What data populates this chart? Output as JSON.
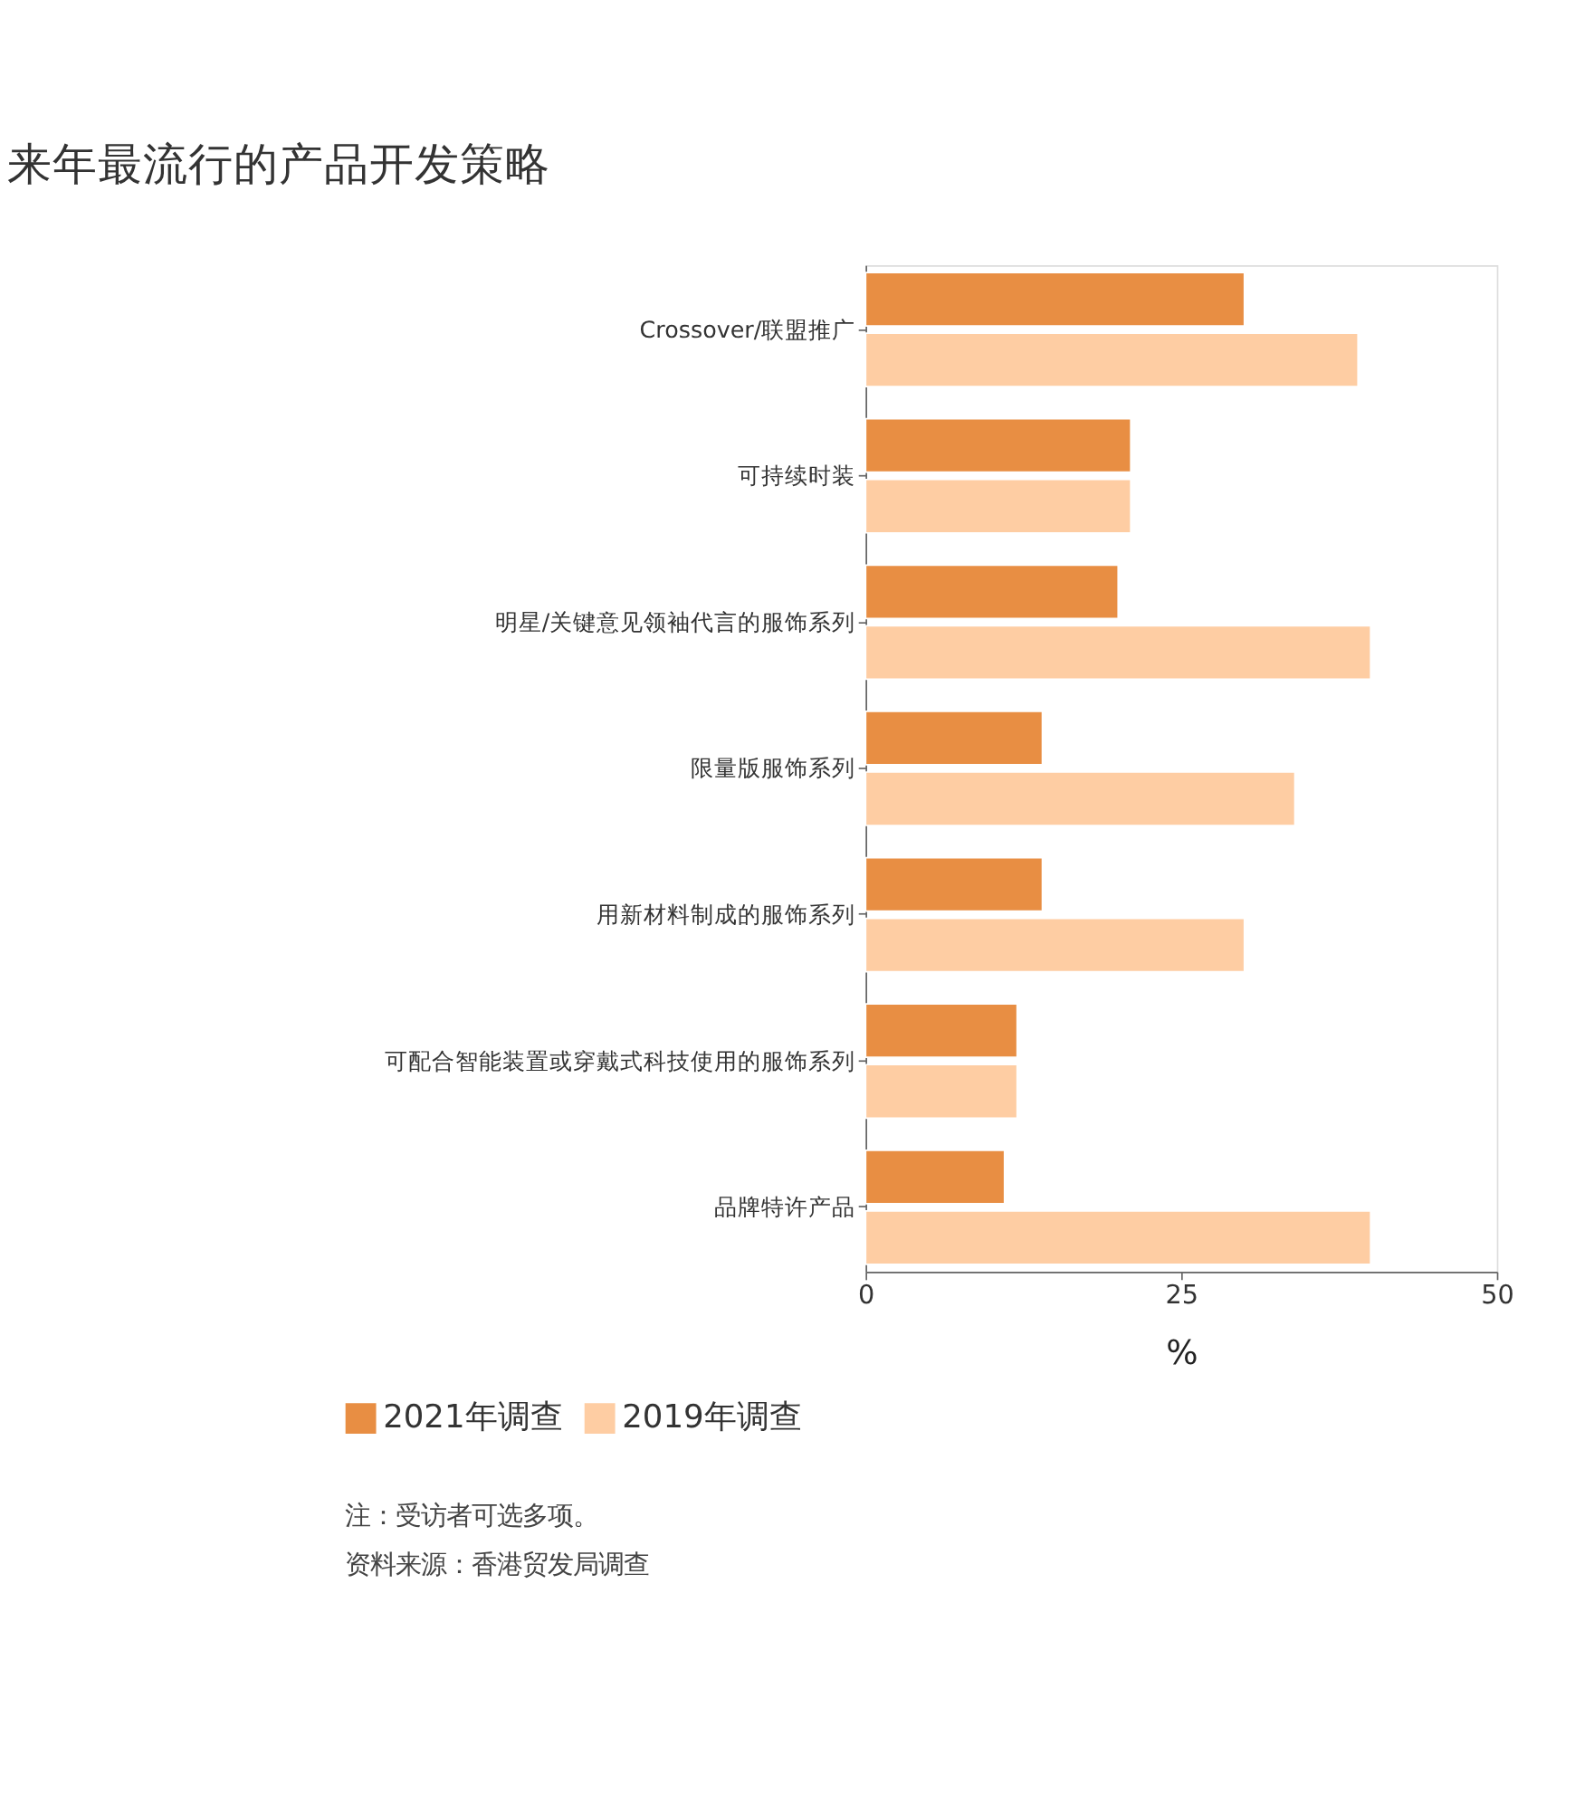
{
  "chart_data": {
    "type": "bar",
    "orientation": "horizontal",
    "title": "来年最流行的产品开发策略",
    "xlabel": "%",
    "categories": [
      "Crossover/联盟推广",
      "可持续时装",
      "明星/关键意见领袖代言的服饰系列",
      "限量版服饰系列",
      "用新材料制成的服饰系列",
      "可配合智能装置或穿戴式科技使用的服饰系列",
      "品牌特许产品"
    ],
    "series": [
      {
        "name": "2021年调查",
        "color": "#e88e43",
        "values": [
          30,
          21,
          20,
          14,
          14,
          12,
          11
        ]
      },
      {
        "name": "2019年调查",
        "color": "#fecda3",
        "values": [
          39,
          21,
          40,
          34,
          30,
          12,
          40
        ]
      }
    ],
    "xlim": [
      0,
      50
    ],
    "xticks": [
      0,
      25,
      50
    ],
    "grid": false,
    "legend": "bottom left",
    "annotations": [
      "注：受访者可选多项。",
      "资料来源：香港贸发局调查"
    ]
  }
}
